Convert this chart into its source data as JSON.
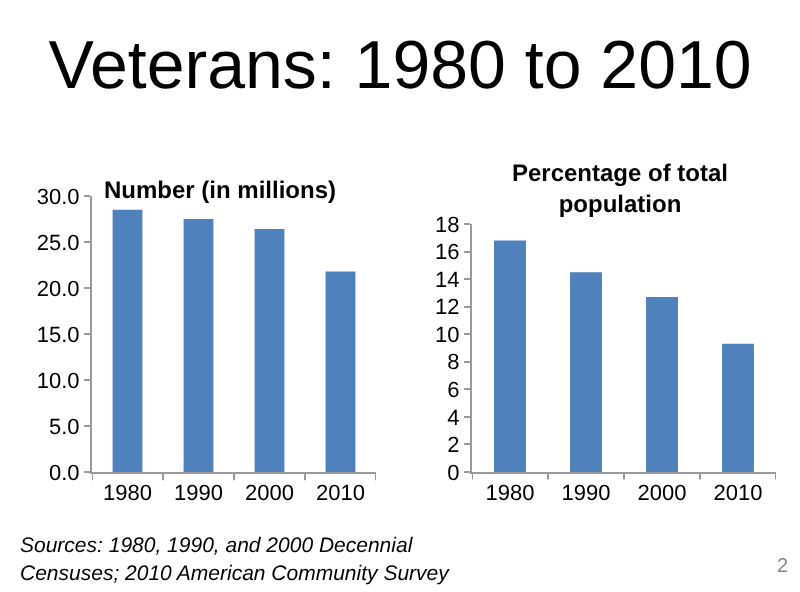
{
  "chart_data": [
    {
      "type": "bar",
      "title": "Number (in millions)",
      "categories": [
        "1980",
        "1990",
        "2000",
        "2010"
      ],
      "values": [
        28.5,
        27.5,
        26.4,
        21.8
      ],
      "color": "#4f81bd",
      "ylim": [
        0,
        30
      ],
      "yticks": [
        {
          "value": 0,
          "label": "0.0"
        },
        {
          "value": 5,
          "label": "5.0"
        },
        {
          "value": 10,
          "label": "10.0"
        },
        {
          "value": 15,
          "label": "15.0"
        },
        {
          "value": 20,
          "label": "20.0"
        },
        {
          "value": 25,
          "label": "25.0"
        },
        {
          "value": 30,
          "label": "30.0"
        }
      ],
      "grid": false,
      "annotations": [
        "Veterans: 1980 to 2010",
        "Sources: 1980, 1990, and 2000 Decennial Censuses; 2010 American Community Survey"
      ]
    },
    {
      "type": "bar",
      "title": "Percentage of total population",
      "categories": [
        "1980",
        "1990",
        "2000",
        "2010"
      ],
      "values": [
        16.8,
        14.5,
        12.7,
        9.3
      ],
      "color": "#4f81bd",
      "ylim": [
        0,
        18
      ],
      "yticks": [
        0,
        2,
        4,
        6,
        8,
        10,
        12,
        14,
        16,
        18
      ],
      "grid": false,
      "annotations": [
        "2"
      ]
    }
  ]
}
